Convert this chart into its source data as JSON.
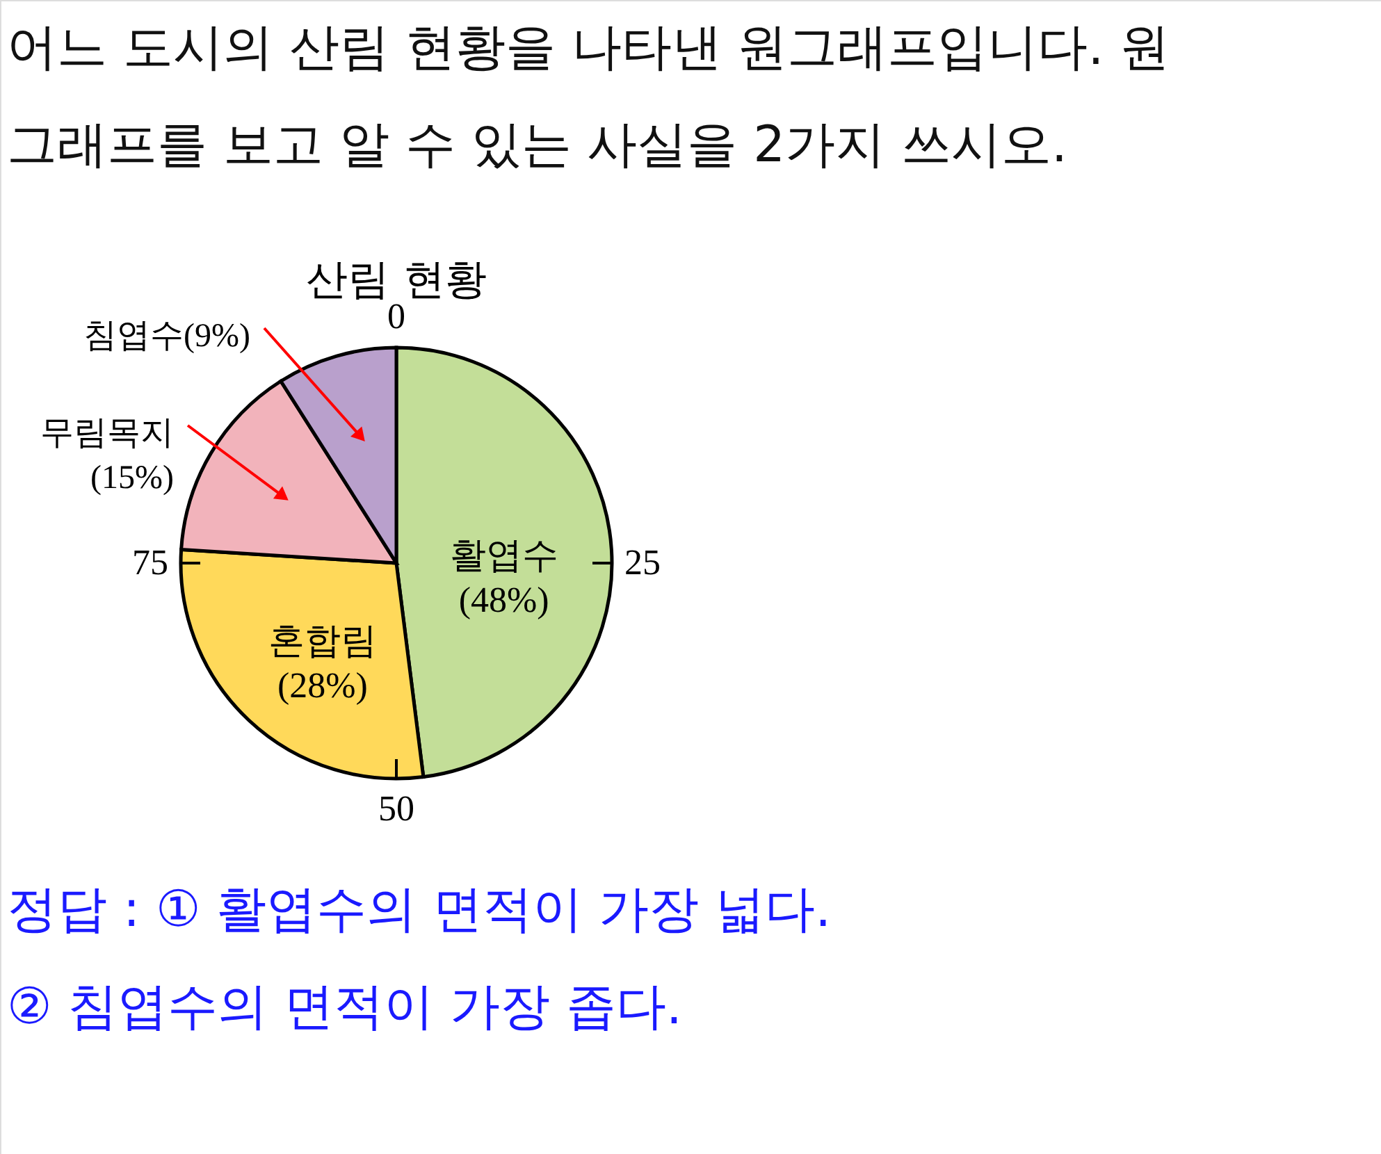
{
  "chart_data": {
    "type": "pie",
    "title": "산림 현황",
    "categories": [
      "활엽수",
      "혼합림",
      "무림목지",
      "침엽수"
    ],
    "values": [
      48,
      28,
      15,
      9
    ],
    "value_labels": [
      "(48%)",
      "(28%)",
      "(15%)",
      "(9%)"
    ],
    "colors": [
      "#c3de98",
      "#ffd95a",
      "#f2b3bb",
      "#b9a0cc"
    ],
    "annotations": [
      "어느 도시의 산림 현황을 나타낸 원그래프입니다. 원",
      "그래프를 보고 알 수 있는 사실을 2가지 쓰시오.",
      "정답 : ① 활엽수의 면적이 가장 넓다.",
      "② 침엽수의 면적이 가장 좁다.",
      "0",
      "25",
      "50",
      "75"
    ]
  }
}
